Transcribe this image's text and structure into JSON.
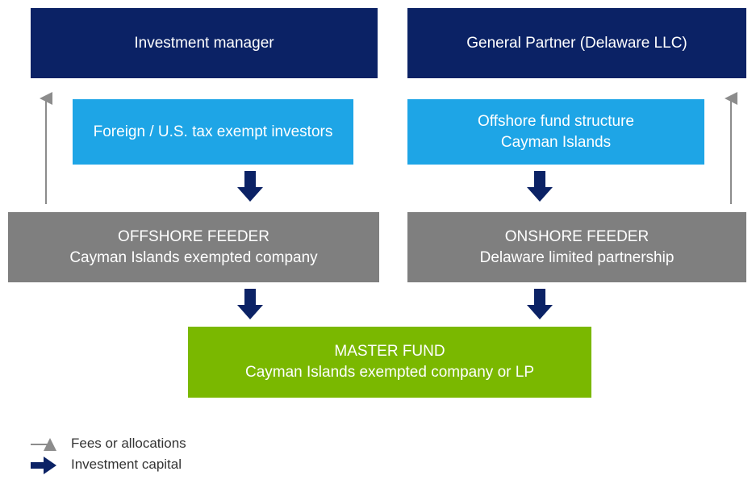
{
  "nodes": [
    {
      "label": "Investment manager"
    },
    {
      "label": "General Partner (Delaware LLC)"
    },
    {
      "label": "Foreign / U.S. tax exempt investors"
    },
    {
      "label": "Offshore fund structure Cayman Islands"
    },
    {
      "label": "OFFSHORE FEEDER",
      "sublabel": "Cayman Islands exempted company"
    },
    {
      "label": "ONSHORE FEEDER",
      "sublabel": "Delaware limited partnership"
    },
    {
      "label": "MASTER FUND",
      "sublabel": "Cayman Islands exempted company or LP"
    }
  ],
  "legend": [
    "Fees or allocations",
    "Investment capital"
  ]
}
